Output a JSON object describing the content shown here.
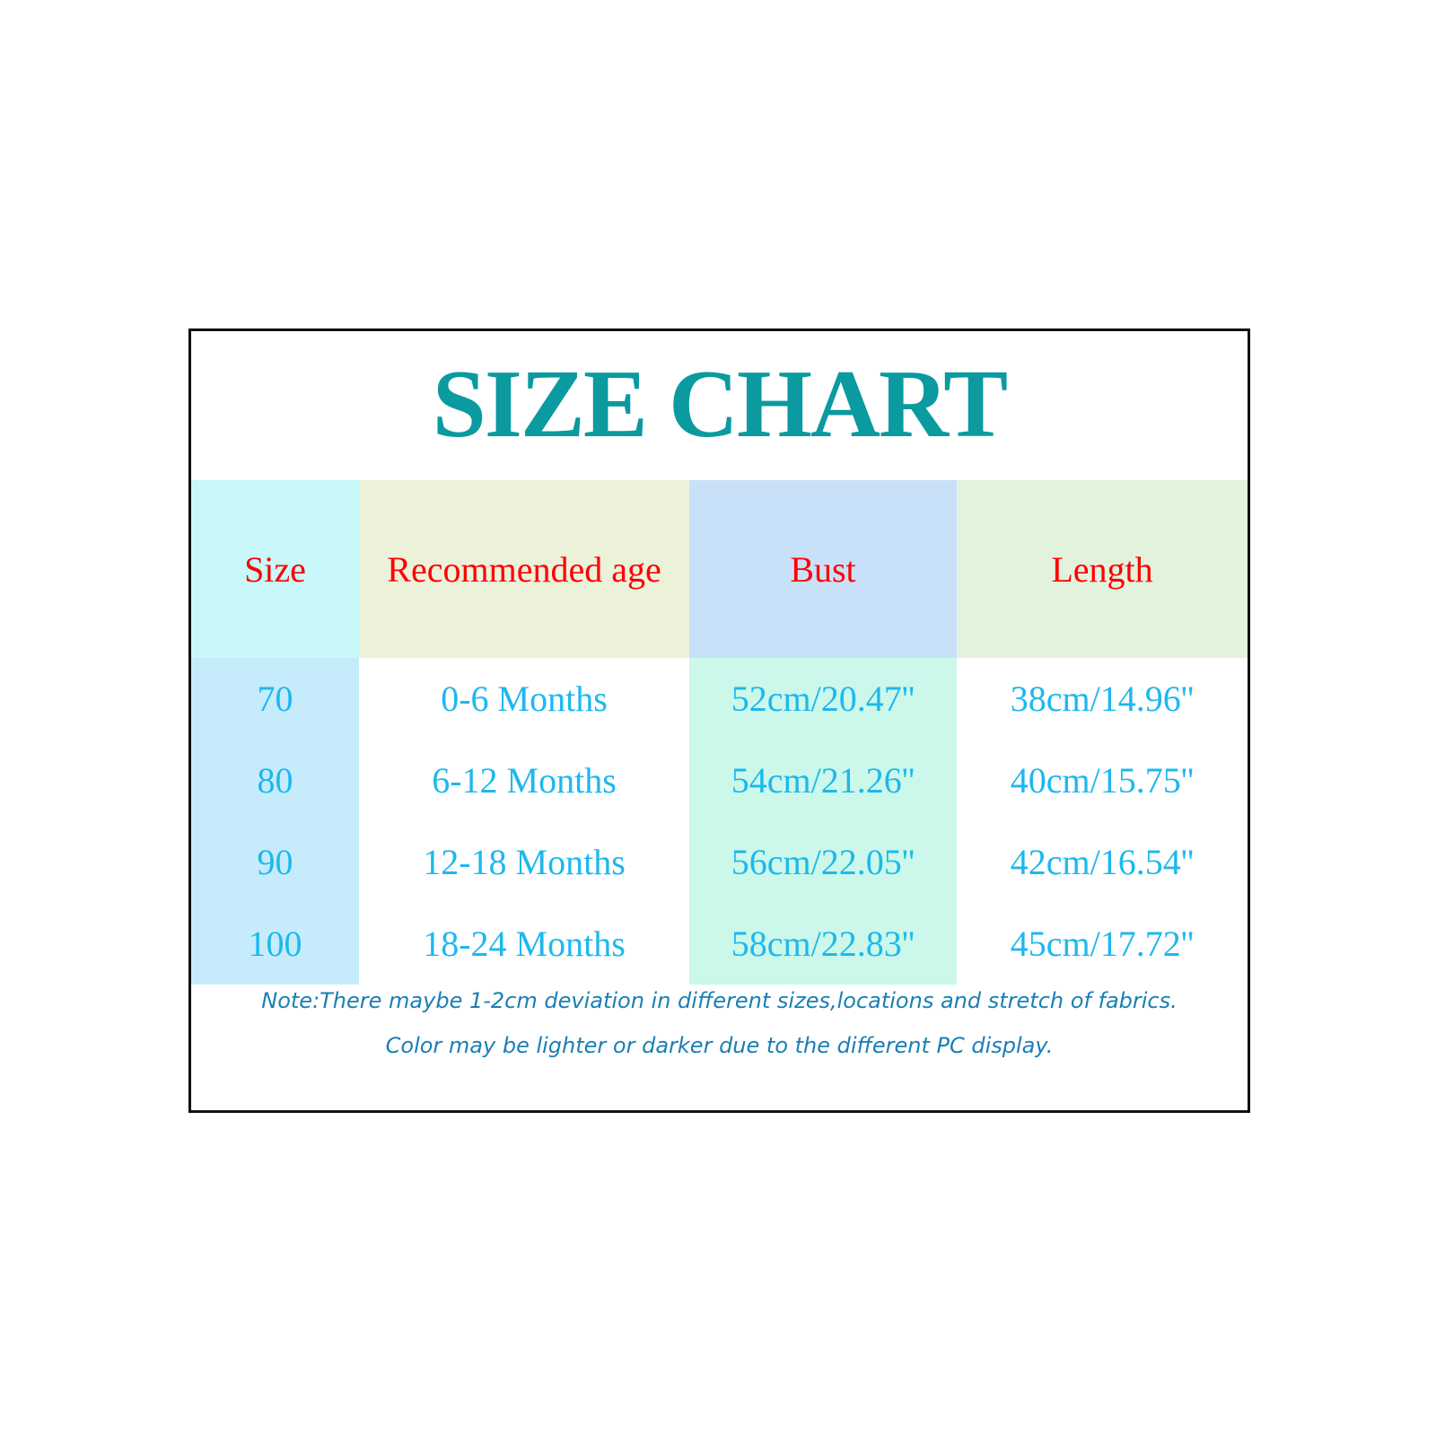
{
  "title": "SIZE CHART",
  "headers": [
    "Size",
    "Recommended age",
    "Bust",
    "Length"
  ],
  "rows": [
    [
      "70",
      "0-6 Months",
      "52cm/20.47''",
      "38cm/14.96''"
    ],
    [
      "80",
      "6-12 Months",
      "54cm/21.26''",
      "40cm/15.75''"
    ],
    [
      "90",
      "12-18 Months",
      "56cm/22.05''",
      "42cm/16.54''"
    ],
    [
      "100",
      "18-24 Months",
      "58cm/22.83''",
      "45cm/17.72''"
    ]
  ],
  "notes": [
    "Note:There maybe 1-2cm deviation in different sizes,locations and stretch of fabrics.",
    "Color may be lighter or darker due to the different PC display."
  ],
  "colors": {
    "title": "#0a9aa0",
    "header_text": "#ff0000",
    "value_text": "#1cb8ee",
    "note_text": "#1a7fb5",
    "header_bg": [
      "#c8f8fa",
      "#ecf1da",
      "#c9e1f8",
      "#e3f2dc"
    ],
    "column_bg": [
      "#c6ecfc",
      "#ffffff",
      "#cbf8ea",
      "#ffffff"
    ]
  }
}
